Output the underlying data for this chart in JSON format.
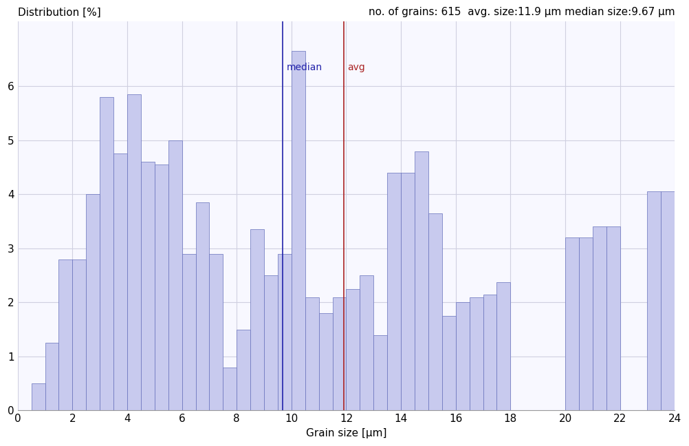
{
  "ylabel_text": "Distribution [%]",
  "xlabel": "Grain size [μm]",
  "stats_text": "no. of grains: 615  avg. size:11.9 μm median size:9.67 μm",
  "median_value": 9.67,
  "avg_value": 11.9,
  "xlim": [
    0,
    24
  ],
  "ylim": [
    0,
    7.2
  ],
  "yticks": [
    0,
    1,
    2,
    3,
    4,
    5,
    6
  ],
  "xticks": [
    0,
    2,
    4,
    6,
    8,
    10,
    12,
    14,
    16,
    18,
    20,
    22,
    24
  ],
  "bar_color": "#c8caee",
  "bar_edge_color": "#6670bb",
  "background_color": "#f8f8ff",
  "bin_width": 0.5,
  "bar_data": [
    [
      0.0,
      0.0
    ],
    [
      0.5,
      0.5
    ],
    [
      1.0,
      1.25
    ],
    [
      1.5,
      2.8
    ],
    [
      2.0,
      2.8
    ],
    [
      2.5,
      4.0
    ],
    [
      3.0,
      5.8
    ],
    [
      3.5,
      4.75
    ],
    [
      4.0,
      5.85
    ],
    [
      4.5,
      4.6
    ],
    [
      5.0,
      4.55
    ],
    [
      5.5,
      5.0
    ],
    [
      6.0,
      2.9
    ],
    [
      6.5,
      3.85
    ],
    [
      7.0,
      2.9
    ],
    [
      7.5,
      0.8
    ],
    [
      8.0,
      1.5
    ],
    [
      8.5,
      3.35
    ],
    [
      9.0,
      2.5
    ],
    [
      9.5,
      2.9
    ],
    [
      10.0,
      6.65
    ],
    [
      10.5,
      2.1
    ],
    [
      11.0,
      1.8
    ],
    [
      11.5,
      2.1
    ],
    [
      12.0,
      2.25
    ],
    [
      12.5,
      2.5
    ],
    [
      13.0,
      1.4
    ],
    [
      13.5,
      4.4
    ],
    [
      14.0,
      4.4
    ],
    [
      14.5,
      4.8
    ],
    [
      15.0,
      3.65
    ],
    [
      15.5,
      1.75
    ],
    [
      16.0,
      2.0
    ],
    [
      16.5,
      2.1
    ],
    [
      17.0,
      2.15
    ],
    [
      17.5,
      2.38
    ],
    [
      18.0,
      0.0
    ],
    [
      18.5,
      0.0
    ],
    [
      19.0,
      0.0
    ],
    [
      19.5,
      0.0
    ],
    [
      20.0,
      3.2
    ],
    [
      20.5,
      3.2
    ],
    [
      21.0,
      3.4
    ],
    [
      21.5,
      3.4
    ],
    [
      22.0,
      0.0
    ],
    [
      22.5,
      0.0
    ],
    [
      23.0,
      4.05
    ],
    [
      23.5,
      4.05
    ]
  ],
  "median_label": "median",
  "avg_label": "avg",
  "median_color": "#2222aa",
  "avg_color": "#aa2222",
  "grid_color": "#d0d0e0",
  "fontsize": 11,
  "label_fontsize": 10
}
